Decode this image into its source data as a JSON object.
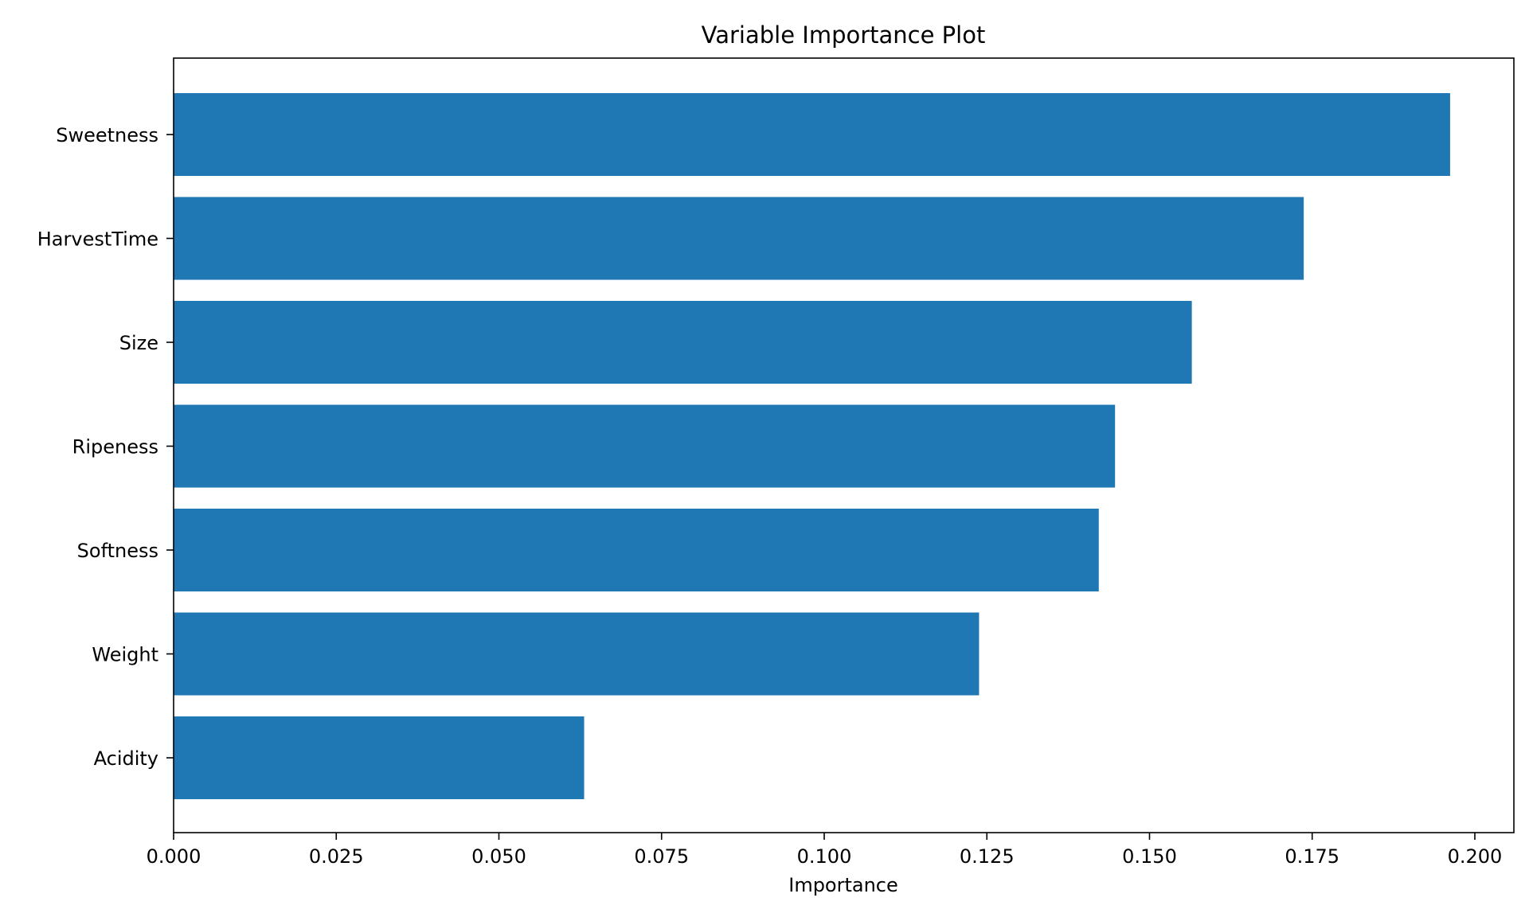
{
  "chart_data": {
    "type": "bar",
    "orientation": "horizontal",
    "title": "Variable Importance Plot",
    "xlabel": "Importance",
    "ylabel": "",
    "categories": [
      "Sweetness",
      "HarvestTime",
      "Size",
      "Ripeness",
      "Softness",
      "Weight",
      "Acidity"
    ],
    "values": [
      0.1962,
      0.1737,
      0.1565,
      0.1447,
      0.1422,
      0.1238,
      0.0631
    ],
    "xlim": [
      0.0,
      0.206
    ],
    "xticks": [
      0.0,
      0.025,
      0.05,
      0.075,
      0.1,
      0.125,
      0.15,
      0.175,
      0.2
    ],
    "xtick_labels": [
      "0.000",
      "0.025",
      "0.050",
      "0.075",
      "0.100",
      "0.125",
      "0.150",
      "0.175",
      "0.200"
    ],
    "bar_color": "#1f77b4",
    "grid": false,
    "legend": "none"
  }
}
